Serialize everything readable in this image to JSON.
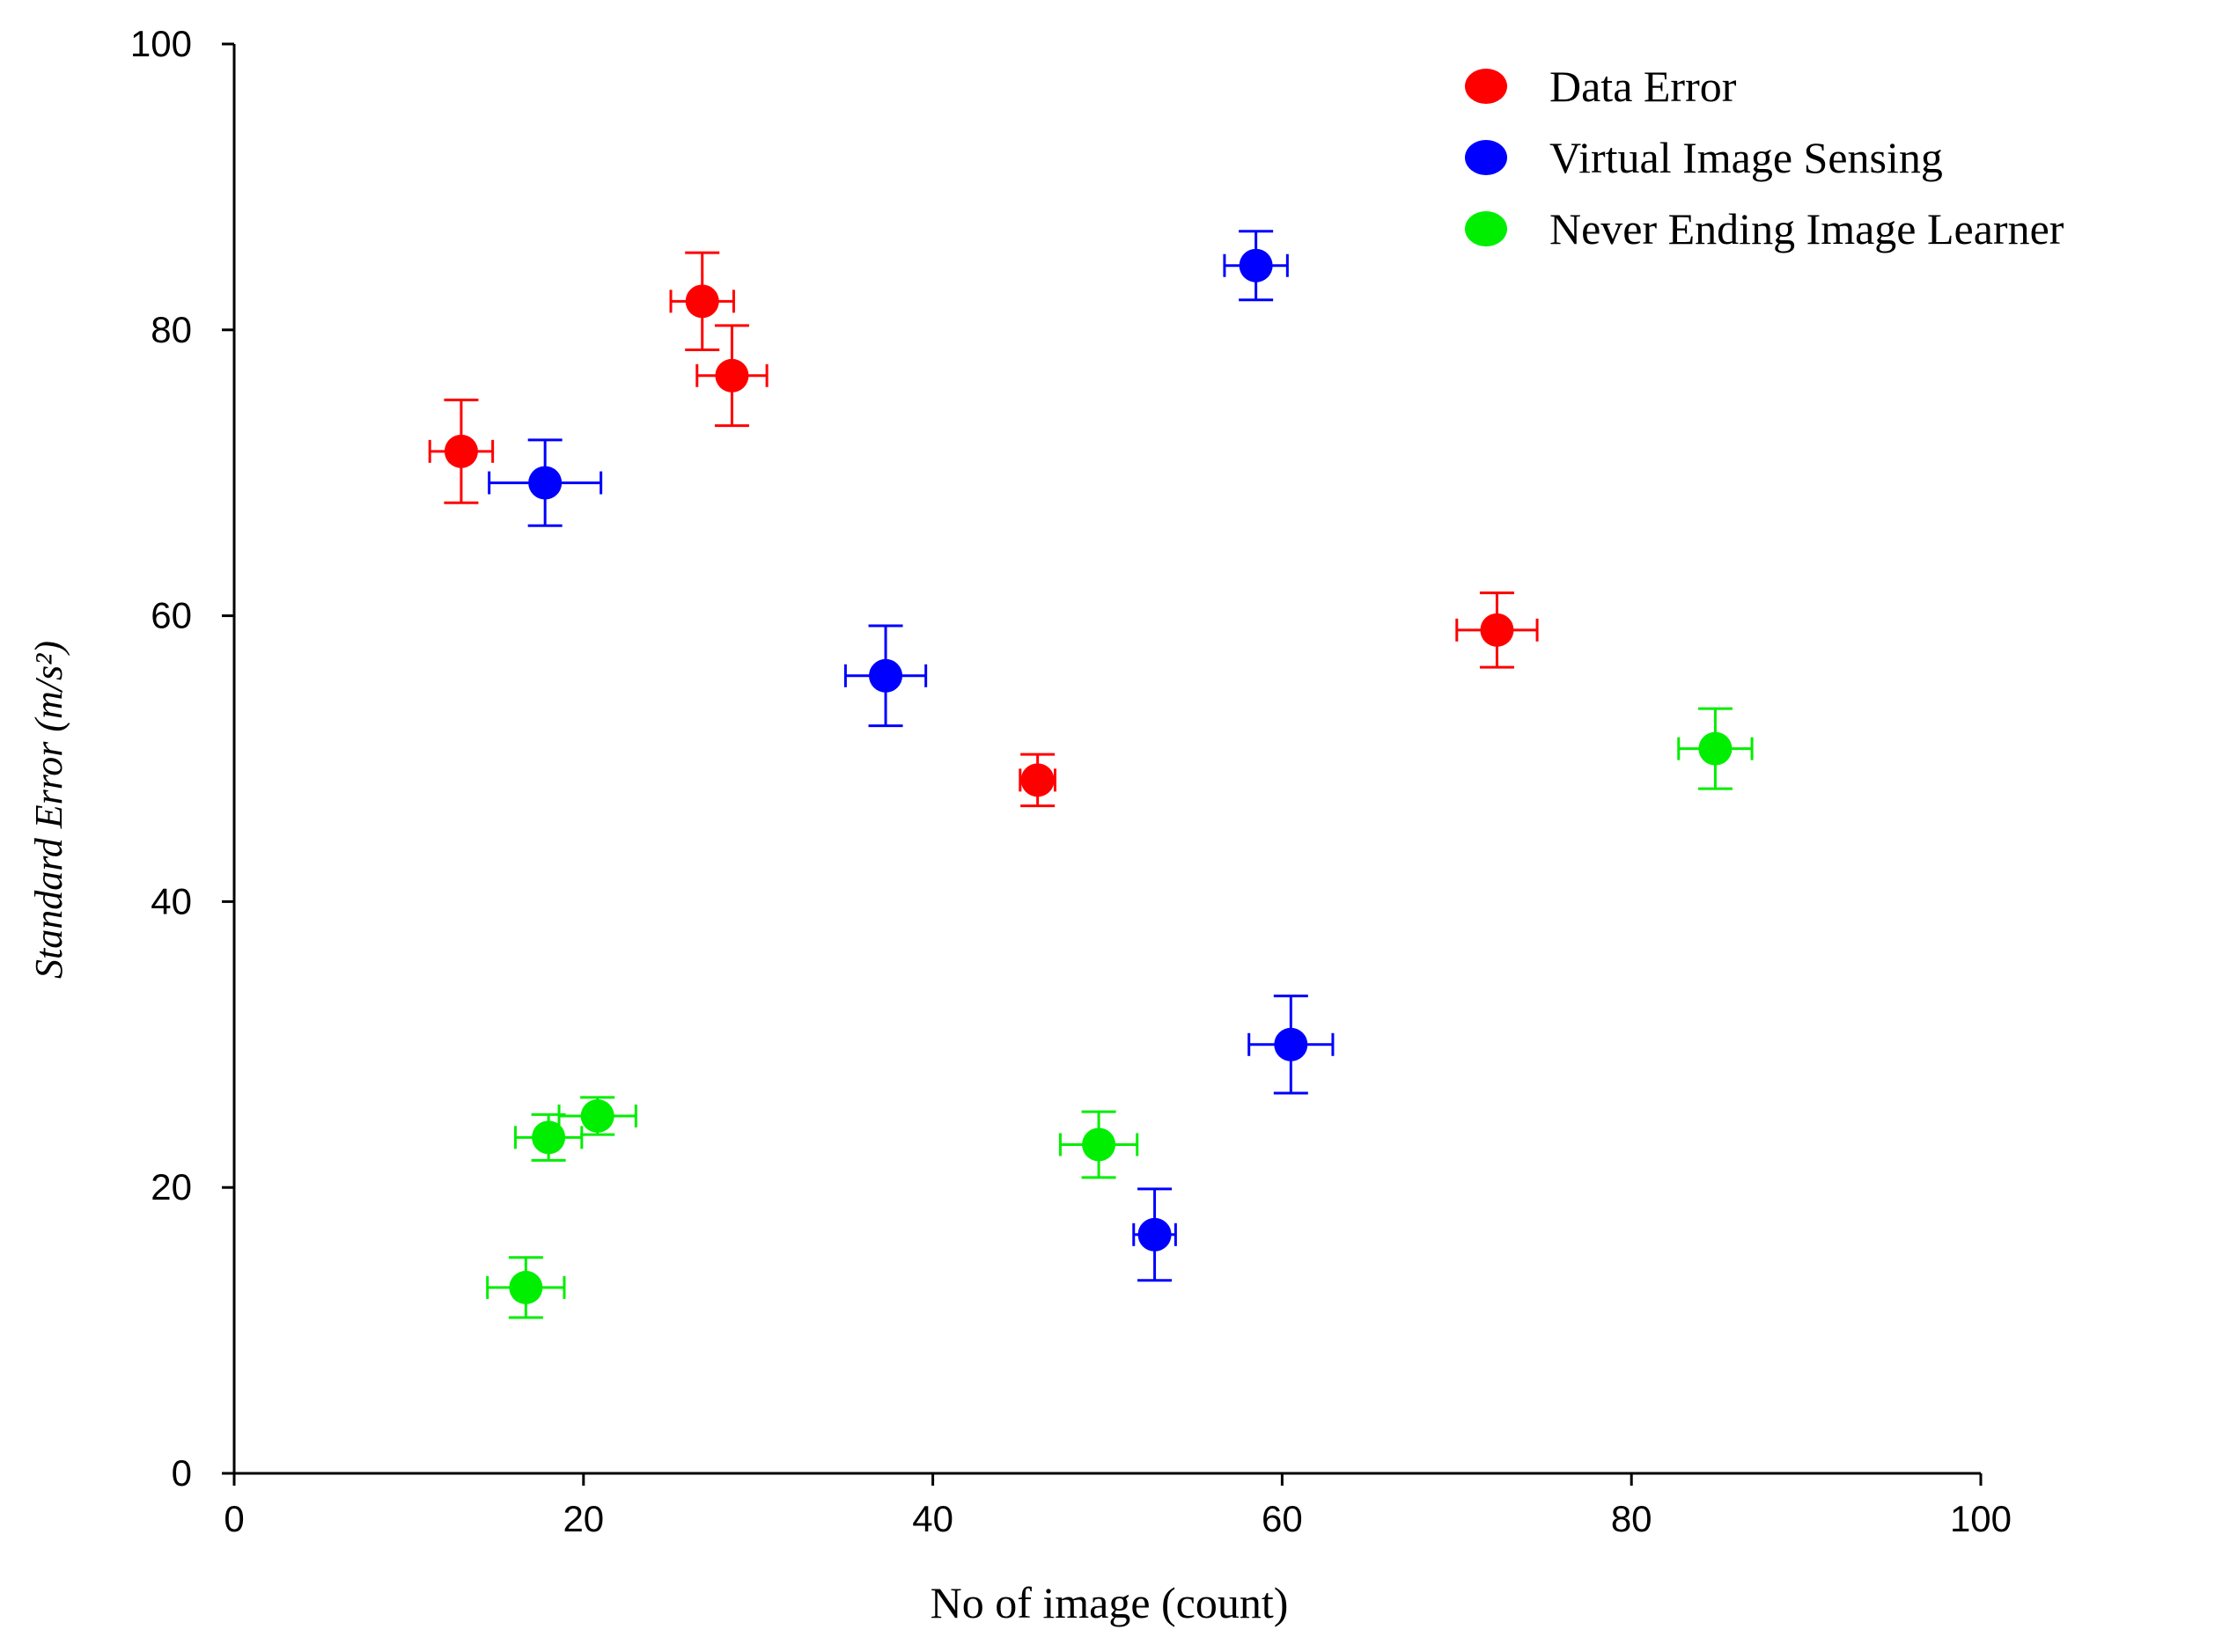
{
  "chart_data": {
    "type": "scatter",
    "xlabel": "No of image (count)",
    "ylabel": "Standard Error (m/s²)",
    "xlim": [
      0,
      100
    ],
    "ylim": [
      0,
      100
    ],
    "xticks": [
      "0",
      "20",
      "40",
      "60",
      "80",
      "100"
    ],
    "yticks": [
      "0",
      "20",
      "40",
      "60",
      "80",
      "100"
    ],
    "grid": false,
    "legend_position": "top-right",
    "series": [
      {
        "name": "Data Error",
        "color": "#ff0000",
        "points": [
          {
            "x": 13.0,
            "y": 71.5,
            "xerr": 1.8,
            "yerr": 3.6
          },
          {
            "x": 26.8,
            "y": 82.0,
            "xerr": 1.8,
            "yerr": 3.4
          },
          {
            "x": 28.5,
            "y": 76.8,
            "xerr": 2.0,
            "yerr": 3.5
          },
          {
            "x": 46.0,
            "y": 48.5,
            "xerr": 1.0,
            "yerr": 1.8
          },
          {
            "x": 72.3,
            "y": 59.0,
            "xerr": 2.3,
            "yerr": 2.6
          }
        ]
      },
      {
        "name": "Virtual Image Sensing",
        "color": "#0000ff",
        "points": [
          {
            "x": 17.8,
            "y": 69.3,
            "xerr": 3.2,
            "yerr": 3.0
          },
          {
            "x": 37.3,
            "y": 55.8,
            "xerr": 2.3,
            "yerr": 3.5
          },
          {
            "x": 58.5,
            "y": 84.5,
            "xerr": 1.8,
            "yerr": 2.4
          },
          {
            "x": 60.5,
            "y": 30.0,
            "xerr": 2.4,
            "yerr": 3.4
          },
          {
            "x": 52.7,
            "y": 16.7,
            "xerr": 1.2,
            "yerr": 3.2
          }
        ]
      },
      {
        "name": "Never Ending Image Learner",
        "color": "#00ee00",
        "points": [
          {
            "x": 18.0,
            "y": 23.5,
            "xerr": 1.9,
            "yerr": 1.6
          },
          {
            "x": 20.8,
            "y": 25.0,
            "xerr": 2.2,
            "yerr": 1.3
          },
          {
            "x": 16.7,
            "y": 13.0,
            "xerr": 2.2,
            "yerr": 2.1
          },
          {
            "x": 49.5,
            "y": 23.0,
            "xerr": 2.2,
            "yerr": 2.3
          },
          {
            "x": 84.8,
            "y": 50.7,
            "xerr": 2.1,
            "yerr": 2.8
          }
        ]
      }
    ]
  }
}
